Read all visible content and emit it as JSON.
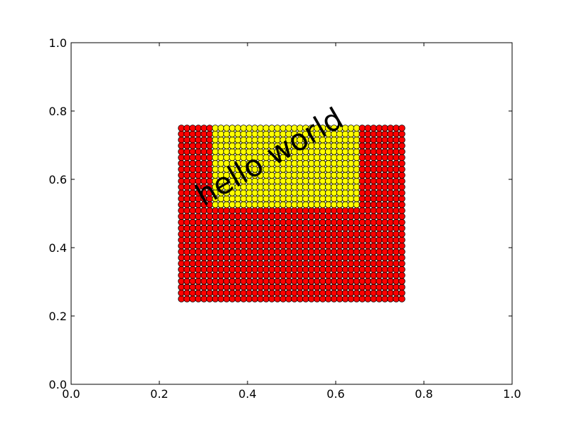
{
  "chart_data": {
    "type": "scatter",
    "xlim": [
      0.0,
      1.0
    ],
    "ylim": [
      0.0,
      1.0
    ],
    "xticks": [
      "0.0",
      "0.2",
      "0.4",
      "0.6",
      "0.8",
      "1.0"
    ],
    "yticks": [
      "0.0",
      "0.2",
      "0.4",
      "0.6",
      "0.8",
      "1.0"
    ],
    "grid": false,
    "legend": "none",
    "point_grid": {
      "x_start": 0.25,
      "x_end": 0.75,
      "x_count": 40,
      "y_start": 0.25,
      "y_end": 0.75,
      "y_count": 30
    },
    "highlight_region": {
      "x_range": [
        0.32,
        0.66
      ],
      "y_range": [
        0.52,
        0.76
      ]
    },
    "colors": {
      "default": "#ff0000",
      "highlight": "#ffff00",
      "edge": "#000000"
    },
    "annotation": {
      "text": "hello world",
      "x": 0.3,
      "y": 0.52,
      "rotation_deg": 30
    }
  }
}
